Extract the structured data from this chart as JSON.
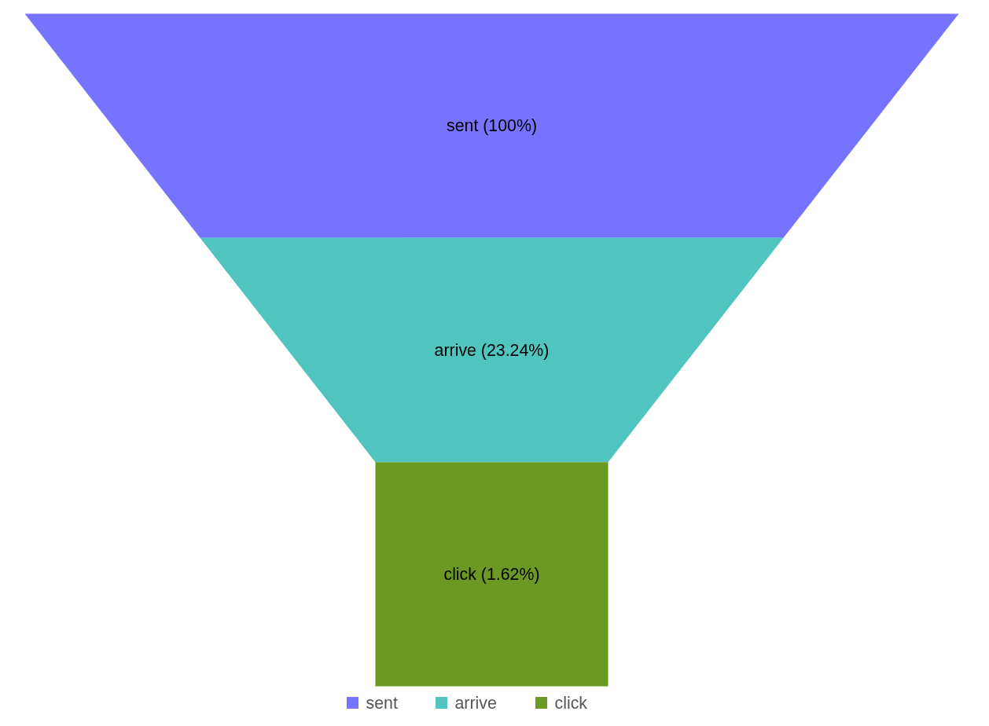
{
  "chart_data": {
    "type": "other",
    "categories": [
      "sent",
      "arrive",
      "click"
    ],
    "values": [
      100,
      23.24,
      1.62
    ],
    "colors": [
      "#7673ff",
      "#50c4be",
      "#6b9a24"
    ],
    "value_labels": [
      "sent (100%)",
      "arrive (23.24%)",
      "click (1.62%)"
    ]
  }
}
